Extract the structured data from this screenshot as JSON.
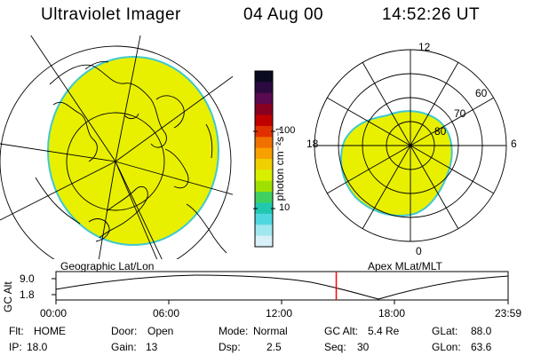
{
  "header": {
    "instrument": "Ultraviolet Imager",
    "date": "04 Aug 00",
    "time": "14:52:26 UT"
  },
  "geo_panel": {
    "label": "Geographic Lat/Lon"
  },
  "mag_panel": {
    "label": "Apex MLat/MLT",
    "mlt_labels": [
      "12",
      "18",
      "6",
      "0"
    ],
    "mlat_labels": [
      "60",
      "70",
      "80"
    ]
  },
  "colorbar": {
    "unit_label": "photon cm⁻²s⁻¹",
    "tick_labels": [
      "100",
      "10"
    ],
    "colors": [
      "#0a0a20",
      "#2a0a40",
      "#5a0a50",
      "#8a0020",
      "#c00000",
      "#e03000",
      "#f07000",
      "#f8a000",
      "#f0d000",
      "#d8f000",
      "#a0e000",
      "#40d060",
      "#20c8b0",
      "#50d8e0",
      "#a0e8f0",
      "#d8f0f8"
    ]
  },
  "timeline": {
    "y_axis_label": "GC Alt",
    "y_ticks": [
      "9.0",
      "1.8"
    ],
    "x_ticks": [
      "00:00",
      "06:00",
      "12:00",
      "18:00",
      "23:59"
    ],
    "marker_time": "14:52"
  },
  "info": {
    "flt_label": "Flt:",
    "flt_value": "HOME",
    "door_label": "Door:",
    "door_value": "Open",
    "mode_label": "Mode:",
    "mode_value": "Normal",
    "gcalt_label": "GC Alt:",
    "gcalt_value": "5.4 Re",
    "glat_label": "GLat:",
    "glat_value": "88.0",
    "ip_label": "IP:",
    "ip_value": "18.0",
    "gain_label": "Gain:",
    "gain_value": "13",
    "dsp_label": "Dsp:",
    "dsp_value": "2.5",
    "seq_label": "Seq:",
    "seq_value": "30",
    "glon_label": "GLon:",
    "glon_value": "63.6"
  },
  "colors": {
    "aurora_fill": "#e8f000",
    "aurora_edge": "#40c8d0",
    "marker": "#ff0000"
  }
}
